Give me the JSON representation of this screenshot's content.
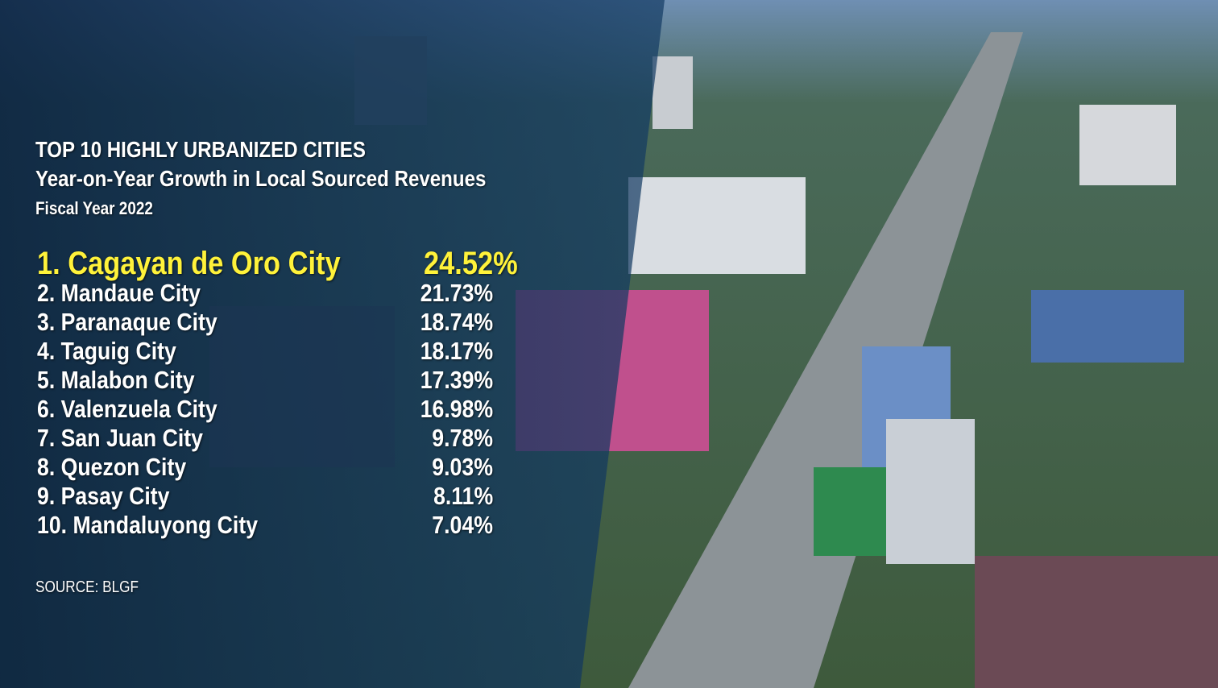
{
  "header": {
    "title": "TOP  10 HIGHLY URBANIZED CITIES",
    "subtitle": "Year-on-Year Growth in Local Sourced Revenues",
    "period": "Fiscal Year 2022"
  },
  "ranking": [
    {
      "city": "1. Cagayan de Oro City",
      "growth": "24.52%"
    },
    {
      "city": "2. Mandaue City",
      "growth": "21.73%"
    },
    {
      "city": "3. Paranaque City",
      "growth": "18.74%"
    },
    {
      "city": "4. Taguig City",
      "growth": "18.17%"
    },
    {
      "city": "5. Malabon City",
      "growth": "17.39%"
    },
    {
      "city": "6. Valenzuela City",
      "growth": "16.98%"
    },
    {
      "city": "7. San Juan City",
      "growth": "9.78%"
    },
    {
      "city": "8. Quezon City",
      "growth": "9.03%"
    },
    {
      "city": "9. Pasay City",
      "growth": "8.11%"
    },
    {
      "city": "10. Mandaluyong City",
      "growth": "7.04%"
    }
  ],
  "footer": {
    "source": "SOURCE: BLGF"
  }
}
